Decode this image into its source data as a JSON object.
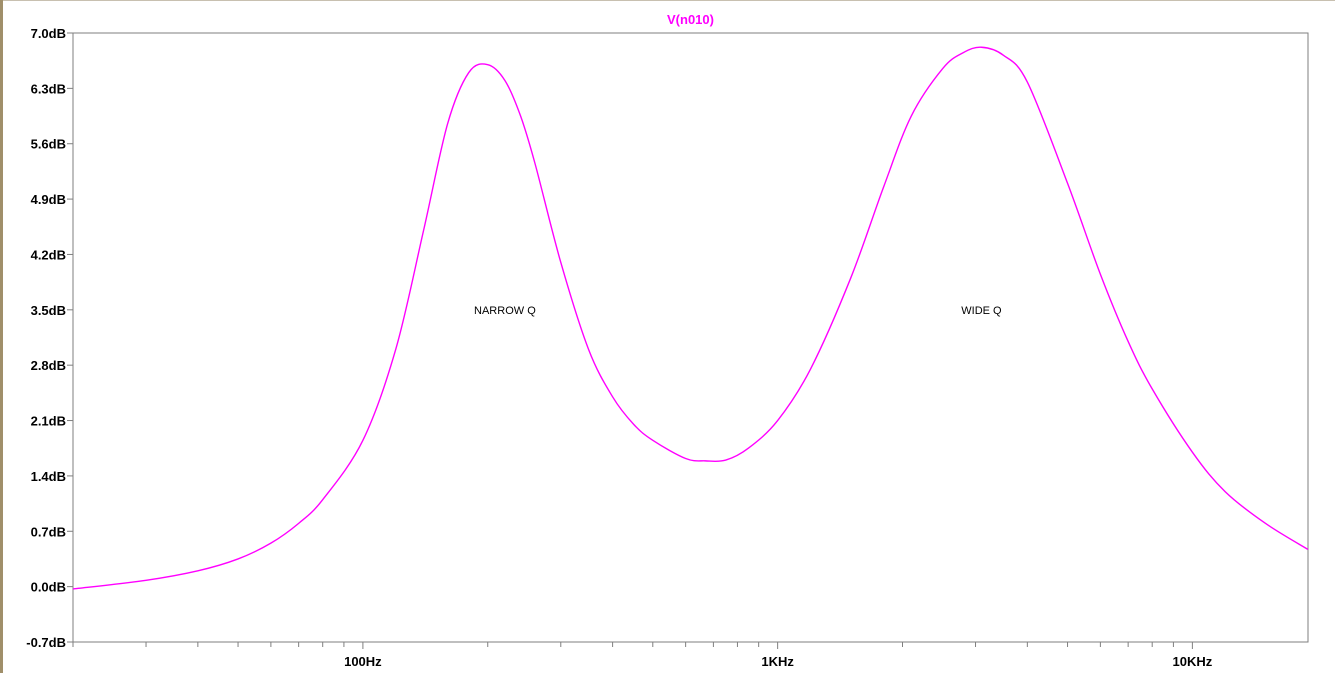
{
  "chart_data": {
    "type": "line",
    "title": "V(n010)",
    "xlabel": "",
    "ylabel": "",
    "x_scale": "log",
    "xlim": [
      20,
      19000
    ],
    "ylim": [
      -0.7,
      7.0
    ],
    "y_ticks": [
      "7.0dB",
      "6.3dB",
      "5.6dB",
      "4.9dB",
      "4.2dB",
      "3.5dB",
      "2.8dB",
      "2.1dB",
      "1.4dB",
      "0.7dB",
      "0.0dB",
      "-0.7dB"
    ],
    "y_tick_values": [
      7.0,
      6.3,
      5.6,
      4.9,
      4.2,
      3.5,
      2.8,
      2.1,
      1.4,
      0.7,
      0.0,
      -0.7
    ],
    "x_ticks": [
      "100Hz",
      "1KHz",
      "10KHz"
    ],
    "x_tick_values": [
      100,
      1000,
      10000
    ],
    "grid": false,
    "series": [
      {
        "name": "V(n010)",
        "color": "#ff00ff",
        "x": [
          20,
          30,
          40,
          50,
          60,
          70,
          80,
          100,
          120,
          140,
          160,
          180,
          200,
          220,
          240,
          260,
          300,
          350,
          400,
          450,
          500,
          600,
          670,
          750,
          850,
          1000,
          1200,
          1500,
          1800,
          2100,
          2500,
          2800,
          3100,
          3500,
          4000,
          5000,
          6000,
          7000,
          8000,
          10000,
          12000,
          15000,
          19000
        ],
        "values": [
          -0.03,
          0.08,
          0.2,
          0.35,
          0.55,
          0.8,
          1.1,
          1.85,
          3.0,
          4.5,
          5.85,
          6.5,
          6.6,
          6.4,
          5.95,
          5.35,
          4.1,
          3.0,
          2.4,
          2.05,
          1.85,
          1.62,
          1.59,
          1.6,
          1.75,
          2.1,
          2.75,
          3.9,
          5.05,
          5.95,
          6.55,
          6.75,
          6.82,
          6.72,
          6.38,
          5.1,
          3.95,
          3.1,
          2.5,
          1.7,
          1.2,
          0.8,
          0.47
        ]
      }
    ],
    "annotations": [
      {
        "text": "NARROW Q",
        "x": 220,
        "y": 3.5
      },
      {
        "text": "WIDE Q",
        "x": 3100,
        "y": 3.5
      }
    ]
  }
}
